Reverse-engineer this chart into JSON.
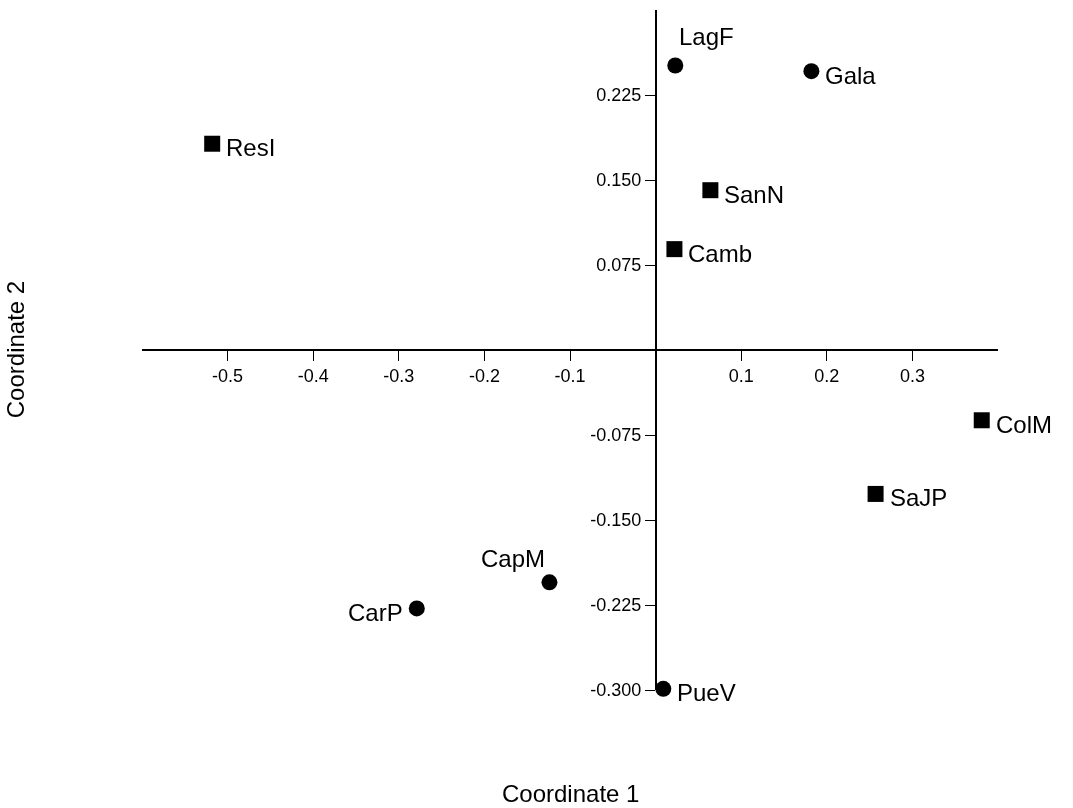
{
  "chart_data": {
    "type": "scatter",
    "xlabel": "Coordinate 1",
    "ylabel": "Coordinate 2",
    "xlim": [
      -0.6,
      0.4
    ],
    "ylim": [
      -0.3,
      0.3
    ],
    "xticks": [
      -0.5,
      -0.4,
      -0.3,
      -0.2,
      -0.1,
      0.1,
      0.2,
      0.3
    ],
    "yticks": [
      {
        "value": 0.225,
        "label": "0.225"
      },
      {
        "value": 0.15,
        "label": "0.150"
      },
      {
        "value": 0.075,
        "label": "0.075"
      },
      {
        "value": -0.075,
        "label": "-0.075"
      },
      {
        "value": -0.15,
        "label": "-0.150"
      },
      {
        "value": -0.225,
        "label": "-0.225"
      },
      {
        "value": -0.3,
        "label": "-0.300"
      }
    ],
    "series": [
      {
        "color": "#000000",
        "marker": "square",
        "x": [
          -0.518,
          0.064,
          0.022,
          0.381,
          0.257
        ],
        "values": [
          0.182,
          0.141,
          0.089,
          -0.062,
          -0.127
        ]
      },
      {
        "color": "#000000",
        "marker": "circle",
        "x": [
          0.023,
          0.182,
          -0.124,
          -0.279,
          0.009
        ],
        "values": [
          0.251,
          0.246,
          -0.205,
          -0.228,
          -0.299
        ]
      }
    ],
    "annotations": [
      {
        "text": "ResI",
        "x": -0.518,
        "y": 0.182
      },
      {
        "text": "SanN",
        "x": 0.064,
        "y": 0.141
      },
      {
        "text": "Camb",
        "x": 0.022,
        "y": 0.089
      },
      {
        "text": "ColM",
        "x": 0.381,
        "y": -0.062
      },
      {
        "text": "SaJP",
        "x": 0.257,
        "y": -0.127
      },
      {
        "text": "LagF",
        "x": 0.023,
        "y": 0.251
      },
      {
        "text": "Gala",
        "x": 0.182,
        "y": 0.246
      },
      {
        "text": "CapM",
        "x": -0.124,
        "y": -0.205
      },
      {
        "text": "CarP",
        "x": -0.279,
        "y": -0.228
      },
      {
        "text": "PueV",
        "x": 0.009,
        "y": -0.299
      }
    ]
  }
}
